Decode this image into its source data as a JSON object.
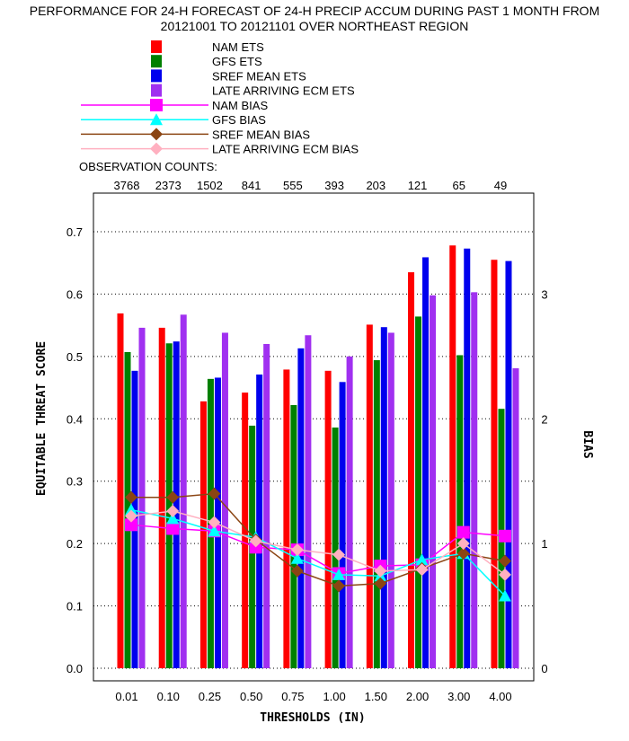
{
  "title_line1": "PERFORMANCE FOR 24-H FORECAST OF 24-H PRECIP ACCUM DURING PAST 1 MONTH FROM",
  "title_line2": "20121001 TO 20121101 OVER NORTHEAST REGION",
  "observation_label": "OBSERVATION COUNTS:",
  "chart_data": {
    "type": "bar",
    "categories": [
      "0.01",
      "0.10",
      "0.25",
      "0.50",
      "0.75",
      "1.00",
      "1.50",
      "2.00",
      "3.00",
      "4.00"
    ],
    "observation_counts": [
      "3768",
      "2373",
      "1502",
      "841",
      "555",
      "393",
      "203",
      "121",
      "65",
      "49"
    ],
    "xlabel": "THRESHOLDS (IN)",
    "ylabel": "EQUITABLE THREAT SCORE",
    "y2label": "BIAS",
    "ylim": [
      0.0,
      0.7
    ],
    "yticks": [
      "0.0",
      "0.1",
      "0.2",
      "0.3",
      "0.4",
      "0.5",
      "0.6",
      "0.7"
    ],
    "y2lim": [
      0,
      3.5
    ],
    "y2ticks": [
      "0",
      "1",
      "2",
      "3"
    ],
    "grid": true,
    "series": [
      {
        "name": "NAM ETS",
        "kind": "bar",
        "color": "#ff0000",
        "values": [
          0.569,
          0.546,
          0.428,
          0.442,
          0.479,
          0.477,
          0.551,
          0.635,
          0.678,
          0.655
        ]
      },
      {
        "name": "GFS ETS",
        "kind": "bar",
        "color": "#008000",
        "values": [
          0.507,
          0.521,
          0.464,
          0.389,
          0.422,
          0.386,
          0.494,
          0.564,
          0.502,
          0.416
        ]
      },
      {
        "name": "SREF MEAN ETS",
        "kind": "bar",
        "color": "#0000ee",
        "values": [
          0.477,
          0.524,
          0.466,
          0.471,
          0.513,
          0.459,
          0.547,
          0.659,
          0.673,
          0.653
        ]
      },
      {
        "name": "LATE ARRIVING ECM ETS",
        "kind": "bar",
        "color": "#a030f0",
        "values": [
          0.546,
          0.567,
          0.538,
          0.52,
          0.534,
          0.5,
          0.538,
          0.598,
          0.603,
          0.481
        ]
      },
      {
        "name": "NAM BIAS",
        "kind": "line",
        "marker": "square",
        "color": "#ff00ff",
        "values": [
          1.15,
          1.12,
          1.1,
          0.97,
          0.95,
          0.76,
          0.82,
          0.83,
          1.09,
          1.06
        ]
      },
      {
        "name": "GFS BIAS",
        "kind": "line",
        "marker": "triangle",
        "color": "#00ffff",
        "values": [
          1.27,
          1.2,
          1.1,
          1.05,
          0.88,
          0.75,
          0.74,
          0.87,
          0.92,
          0.58
        ]
      },
      {
        "name": "SREF MEAN BIAS",
        "kind": "line",
        "marker": "diamond",
        "color": "#8b4513",
        "values": [
          1.37,
          1.37,
          1.4,
          1.03,
          0.78,
          0.66,
          0.68,
          0.8,
          0.92,
          0.86
        ]
      },
      {
        "name": "LATE ARRIVING ECM BIAS",
        "kind": "line",
        "marker": "diamond",
        "color": "#ffb0c0",
        "values": [
          1.22,
          1.26,
          1.17,
          1.02,
          0.95,
          0.91,
          0.78,
          0.79,
          1.0,
          0.75
        ]
      }
    ]
  }
}
